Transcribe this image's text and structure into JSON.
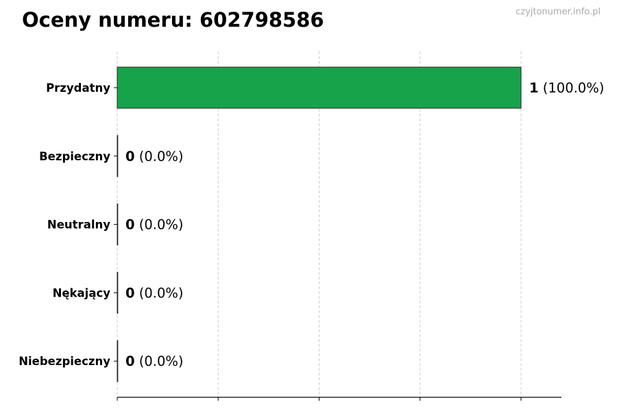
{
  "chart_data": {
    "type": "bar",
    "orientation": "horizontal",
    "title": "Oceny numeru: 602798586",
    "watermark": "czyjtonumer.info.pl",
    "categories": [
      "Przydatny",
      "Bezpieczny",
      "Neutralny",
      "Nękający",
      "Niebezpieczny"
    ],
    "values": [
      1,
      0,
      0,
      0,
      0
    ],
    "labels": [
      {
        "count": "1",
        "pct": "(100.0%)"
      },
      {
        "count": "0",
        "pct": "(0.0%)"
      },
      {
        "count": "0",
        "pct": "(0.0%)"
      },
      {
        "count": "0",
        "pct": "(0.0%)"
      },
      {
        "count": "0",
        "pct": "(0.0%)"
      }
    ],
    "xlim": [
      0,
      1.1
    ],
    "xticks": [
      0,
      0.25,
      0.5,
      0.75,
      1
    ],
    "xtick_labels_shown": false,
    "grid": "x-dashed",
    "colors": {
      "bar": "#17a34a",
      "edge": "#222222",
      "grid": "#cccccc"
    }
  }
}
